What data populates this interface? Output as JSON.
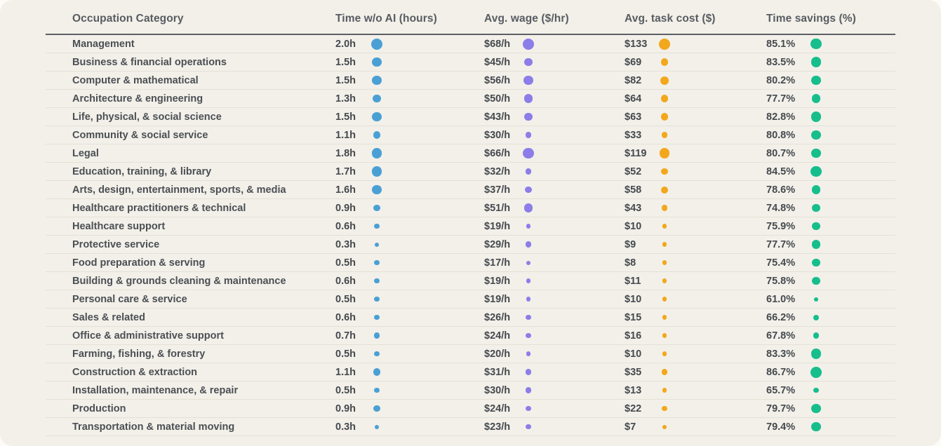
{
  "table": {
    "columns": [
      "Occupation Category",
      "Time w/o AI (hours)",
      "Avg. wage ($/hr)",
      "Avg. task cost ($)",
      "Time savings (%)"
    ],
    "rows": [
      {
        "category": "Management",
        "time": "2.0h",
        "wage": "$68/h",
        "cost": "$133",
        "savings": "85.1%"
      },
      {
        "category": "Business & financial operations",
        "time": "1.5h",
        "wage": "$45/h",
        "cost": "$69",
        "savings": "83.5%"
      },
      {
        "category": "Computer & mathematical",
        "time": "1.5h",
        "wage": "$56/h",
        "cost": "$82",
        "savings": "80.2%"
      },
      {
        "category": "Architecture & engineering",
        "time": "1.3h",
        "wage": "$50/h",
        "cost": "$64",
        "savings": "77.7%"
      },
      {
        "category": "Life, physical, & social science",
        "time": "1.5h",
        "wage": "$43/h",
        "cost": "$63",
        "savings": "82.8%"
      },
      {
        "category": "Community & social service",
        "time": "1.1h",
        "wage": "$30/h",
        "cost": "$33",
        "savings": "80.8%"
      },
      {
        "category": "Legal",
        "time": "1.8h",
        "wage": "$66/h",
        "cost": "$119",
        "savings": "80.7%"
      },
      {
        "category": "Education, training, & library",
        "time": "1.7h",
        "wage": "$32/h",
        "cost": "$52",
        "savings": "84.5%"
      },
      {
        "category": "Arts, design, entertainment, sports, & media",
        "time": "1.6h",
        "wage": "$37/h",
        "cost": "$58",
        "savings": "78.6%"
      },
      {
        "category": "Healthcare practitioners & technical",
        "time": "0.9h",
        "wage": "$51/h",
        "cost": "$43",
        "savings": "74.8%"
      },
      {
        "category": "Healthcare support",
        "time": "0.6h",
        "wage": "$19/h",
        "cost": "$10",
        "savings": "75.9%"
      },
      {
        "category": "Protective service",
        "time": "0.3h",
        "wage": "$29/h",
        "cost": "$9",
        "savings": "77.7%"
      },
      {
        "category": "Food preparation & serving",
        "time": "0.5h",
        "wage": "$17/h",
        "cost": "$8",
        "savings": "75.4%"
      },
      {
        "category": "Building & grounds cleaning & maintenance",
        "time": "0.6h",
        "wage": "$19/h",
        "cost": "$11",
        "savings": "75.8%"
      },
      {
        "category": "Personal care & service",
        "time": "0.5h",
        "wage": "$19/h",
        "cost": "$10",
        "savings": "61.0%"
      },
      {
        "category": "Sales & related",
        "time": "0.6h",
        "wage": "$26/h",
        "cost": "$15",
        "savings": "66.2%"
      },
      {
        "category": "Office & administrative support",
        "time": "0.7h",
        "wage": "$24/h",
        "cost": "$16",
        "savings": "67.8%"
      },
      {
        "category": "Farming, fishing, & forestry",
        "time": "0.5h",
        "wage": "$20/h",
        "cost": "$10",
        "savings": "83.3%"
      },
      {
        "category": "Construction & extraction",
        "time": "1.1h",
        "wage": "$31/h",
        "cost": "$35",
        "savings": "86.7%"
      },
      {
        "category": "Installation, maintenance, & repair",
        "time": "0.5h",
        "wage": "$30/h",
        "cost": "$13",
        "savings": "65.7%"
      },
      {
        "category": "Production",
        "time": "0.9h",
        "wage": "$24/h",
        "cost": "$22",
        "savings": "79.7%"
      },
      {
        "category": "Transportation & material moving",
        "time": "0.3h",
        "wage": "$23/h",
        "cost": "$7",
        "savings": "79.4%"
      }
    ]
  },
  "colors": {
    "time_dot": "#4aa0d4",
    "wage_dot": "#8c7de8",
    "cost_dot": "#f3a71b",
    "savings_dot": "#16be8c",
    "card_background": "#f2f0e9"
  },
  "chart_data": {
    "type": "table",
    "title": "",
    "columns": [
      "Occupation Category",
      "Time w/o AI (hours)",
      "Avg. wage ($/hr)",
      "Avg. task cost ($)",
      "Time savings (%)"
    ],
    "categories": [
      "Management",
      "Business & financial operations",
      "Computer & mathematical",
      "Architecture & engineering",
      "Life, physical, & social science",
      "Community & social service",
      "Legal",
      "Education, training, & library",
      "Arts, design, entertainment, sports, & media",
      "Healthcare practitioners & technical",
      "Healthcare support",
      "Protective service",
      "Food preparation & serving",
      "Building & grounds cleaning & maintenance",
      "Personal care & service",
      "Sales & related",
      "Office & administrative support",
      "Farming, fishing, & forestry",
      "Construction & extraction",
      "Installation, maintenance, & repair",
      "Production",
      "Transportation & material moving"
    ],
    "series": [
      {
        "name": "Time w/o AI (hours)",
        "key": "time",
        "values": [
          2.0,
          1.5,
          1.5,
          1.3,
          1.5,
          1.1,
          1.8,
          1.7,
          1.6,
          0.9,
          0.6,
          0.3,
          0.5,
          0.6,
          0.5,
          0.6,
          0.7,
          0.5,
          1.1,
          0.5,
          0.9,
          0.3
        ]
      },
      {
        "name": "Avg. wage ($/hr)",
        "key": "wage",
        "values": [
          68,
          45,
          56,
          50,
          43,
          30,
          66,
          32,
          37,
          51,
          19,
          29,
          17,
          19,
          19,
          26,
          24,
          20,
          31,
          30,
          24,
          23
        ]
      },
      {
        "name": "Avg. task cost ($)",
        "key": "cost",
        "values": [
          133,
          69,
          82,
          64,
          63,
          33,
          119,
          52,
          58,
          43,
          10,
          9,
          8,
          11,
          10,
          15,
          16,
          10,
          35,
          13,
          22,
          7
        ]
      },
      {
        "name": "Time savings (%)",
        "key": "savings",
        "values": [
          85.1,
          83.5,
          80.2,
          77.7,
          82.8,
          80.8,
          80.7,
          84.5,
          78.6,
          74.8,
          75.9,
          77.7,
          75.4,
          75.8,
          61.0,
          66.2,
          67.8,
          83.3,
          86.7,
          65.7,
          79.7,
          79.4
        ]
      }
    ],
    "encoding": "dot diameter scaled to value within each numeric column",
    "legend_position": "none",
    "grid": "horizontal row separators"
  }
}
